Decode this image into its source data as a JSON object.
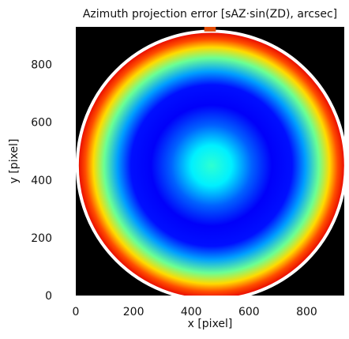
{
  "chart_data": {
    "type": "heatmap",
    "title": "Azimuth projection error [sAZ·sin(ZD), arcsec]",
    "xlabel": "x [pixel]",
    "ylabel": "y [pixel]",
    "xlim": [
      0,
      930
    ],
    "ylim": [
      0,
      930
    ],
    "xticks": [
      0,
      200,
      400,
      600,
      800
    ],
    "yticks": [
      0,
      200,
      400,
      600,
      800
    ],
    "grid": false,
    "background_color": "#000000",
    "circle": {
      "center_x": 470,
      "center_y": 450,
      "radius": 465,
      "edge_color": "#ffffff"
    },
    "colormap": "jet",
    "radial_profile": {
      "r_fraction": [
        0,
        0.15,
        0.3,
        0.45,
        0.6,
        0.7,
        0.8,
        0.88,
        0.94,
        1.0
      ],
      "color_fraction": [
        0.42,
        0.36,
        0.22,
        0.12,
        0.14,
        0.28,
        0.48,
        0.66,
        0.8,
        0.9
      ]
    },
    "colors": {
      "top_marker": "#e14a00"
    },
    "top_marker": {
      "x": 465,
      "y": 922,
      "width": 40,
      "height": 16
    }
  }
}
